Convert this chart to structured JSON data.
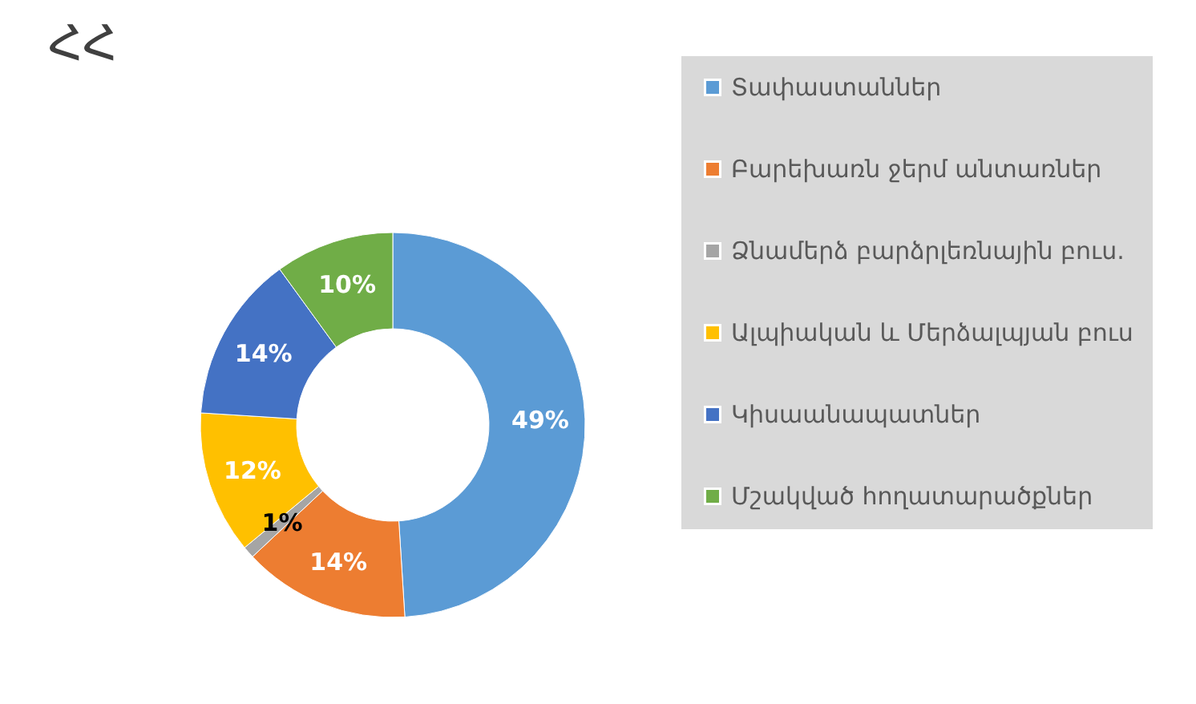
{
  "chart_data": {
    "type": "donut",
    "title": "ՀՀ",
    "categories": [
      "Տափաստաններ",
      "Բարեխառն ջերմ անտառներ",
      "Ձնամերձ բարձրլեռնային բուս.",
      "Ալպիական և Մերձալպյան բուս",
      "Կիսաանապատներ",
      "Մշակված հողատարածքներ"
    ],
    "values": [
      49,
      14,
      1,
      12,
      14,
      10
    ],
    "value_labels": [
      "49%",
      "14%",
      "1%",
      "12%",
      "14%",
      "10%"
    ],
    "colors": [
      "#5b9bd5",
      "#ed7d31",
      "#a5a5a5",
      "#ffc000",
      "#4472c4",
      "#70ad47"
    ],
    "legend": "right"
  }
}
